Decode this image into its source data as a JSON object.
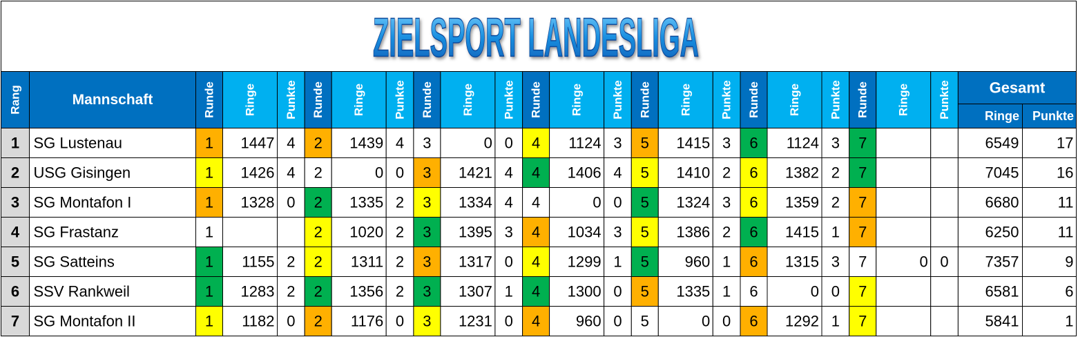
{
  "title": "ZIELSPORT LANDESLIGA",
  "colors": {
    "orange": "#ffb000",
    "yellow": "#ffff00",
    "green": "#00b050"
  },
  "header": {
    "rang": "Rang",
    "team": "Mannschaft",
    "rounds": [
      {
        "runde": "Runde",
        "ringe": "Ringe",
        "punkte": "Punkte"
      },
      {
        "runde": "Runde",
        "ringe": "Ringe",
        "punkte": "Punkte"
      },
      {
        "runde": "Runde",
        "ringe": "Ringe",
        "punkte": "Punkte"
      },
      {
        "runde": "Runde",
        "ringe": "Ringe",
        "punkte": "Punkte"
      },
      {
        "runde": "Runde",
        "ringe": "Ringe",
        "punkte": "Punkte"
      },
      {
        "runde": "Runde",
        "ringe": "Ringe",
        "punkte": "Punkte"
      },
      {
        "runde": "Runde",
        "ringe": "Ringe",
        "punkte": "Punkte"
      }
    ],
    "total": {
      "title": "Gesamt",
      "ringe": "Ringe",
      "punkte": "Punkte"
    }
  },
  "table": {
    "rows": [
      {
        "rang": 1,
        "team": "SG Lustenau",
        "rounds": [
          {
            "runde": 1,
            "ringe": 1447,
            "punkte": 4,
            "color": "orange"
          },
          {
            "runde": 2,
            "ringe": 1439,
            "punkte": 4,
            "color": "orange"
          },
          {
            "runde": 3,
            "ringe": 0,
            "punkte": 0,
            "color": null
          },
          {
            "runde": 4,
            "ringe": 1124,
            "punkte": 3,
            "color": "yellow"
          },
          {
            "runde": 5,
            "ringe": 1415,
            "punkte": 3,
            "color": "orange"
          },
          {
            "runde": 6,
            "ringe": 1124,
            "punkte": 3,
            "color": "green"
          },
          {
            "runde": 7,
            "ringe": null,
            "punkte": null,
            "color": "green"
          }
        ],
        "total": {
          "ringe": 6549,
          "punkte": 17
        }
      },
      {
        "rang": 2,
        "team": "USG Gisingen",
        "rounds": [
          {
            "runde": 1,
            "ringe": 1426,
            "punkte": 4,
            "color": "yellow"
          },
          {
            "runde": 2,
            "ringe": 0,
            "punkte": 0,
            "color": null
          },
          {
            "runde": 3,
            "ringe": 1421,
            "punkte": 4,
            "color": "orange"
          },
          {
            "runde": 4,
            "ringe": 1406,
            "punkte": 4,
            "color": "green"
          },
          {
            "runde": 5,
            "ringe": 1410,
            "punkte": 2,
            "color": "yellow"
          },
          {
            "runde": 6,
            "ringe": 1382,
            "punkte": 2,
            "color": "yellow"
          },
          {
            "runde": 7,
            "ringe": null,
            "punkte": null,
            "color": "green"
          }
        ],
        "total": {
          "ringe": 7045,
          "punkte": 16
        }
      },
      {
        "rang": 3,
        "team": "SG Montafon I",
        "rounds": [
          {
            "runde": 1,
            "ringe": 1328,
            "punkte": 0,
            "color": "orange"
          },
          {
            "runde": 2,
            "ringe": 1335,
            "punkte": 2,
            "color": "green"
          },
          {
            "runde": 3,
            "ringe": 1334,
            "punkte": 4,
            "color": "yellow"
          },
          {
            "runde": 4,
            "ringe": 0,
            "punkte": 0,
            "color": null
          },
          {
            "runde": 5,
            "ringe": 1324,
            "punkte": 3,
            "color": "green"
          },
          {
            "runde": 6,
            "ringe": 1359,
            "punkte": 2,
            "color": "yellow"
          },
          {
            "runde": 7,
            "ringe": null,
            "punkte": null,
            "color": "orange"
          }
        ],
        "total": {
          "ringe": 6680,
          "punkte": 11
        }
      },
      {
        "rang": 4,
        "team": "SG Frastanz",
        "rounds": [
          {
            "runde": 1,
            "ringe": null,
            "punkte": null,
            "color": null
          },
          {
            "runde": 2,
            "ringe": 1020,
            "punkte": 2,
            "color": "yellow"
          },
          {
            "runde": 3,
            "ringe": 1395,
            "punkte": 3,
            "color": "green"
          },
          {
            "runde": 4,
            "ringe": 1034,
            "punkte": 3,
            "color": "orange"
          },
          {
            "runde": 5,
            "ringe": 1386,
            "punkte": 2,
            "color": "yellow"
          },
          {
            "runde": 6,
            "ringe": 1415,
            "punkte": 1,
            "color": "green"
          },
          {
            "runde": 7,
            "ringe": null,
            "punkte": null,
            "color": "orange"
          }
        ],
        "total": {
          "ringe": 6250,
          "punkte": 11
        }
      },
      {
        "rang": 5,
        "team": "SG Satteins",
        "rounds": [
          {
            "runde": 1,
            "ringe": 1155,
            "punkte": 2,
            "color": "green"
          },
          {
            "runde": 2,
            "ringe": 1311,
            "punkte": 2,
            "color": "yellow"
          },
          {
            "runde": 3,
            "ringe": 1317,
            "punkte": 0,
            "color": "orange"
          },
          {
            "runde": 4,
            "ringe": 1299,
            "punkte": 1,
            "color": "yellow"
          },
          {
            "runde": 5,
            "ringe": 960,
            "punkte": 1,
            "color": "green"
          },
          {
            "runde": 6,
            "ringe": 1315,
            "punkte": 3,
            "color": "orange"
          },
          {
            "runde": 7,
            "ringe": 0,
            "punkte": 0,
            "color": null
          }
        ],
        "total": {
          "ringe": 7357,
          "punkte": 9
        }
      },
      {
        "rang": 6,
        "team": "SSV Rankweil",
        "rounds": [
          {
            "runde": 1,
            "ringe": 1283,
            "punkte": 2,
            "color": "green"
          },
          {
            "runde": 2,
            "ringe": 1356,
            "punkte": 2,
            "color": "green"
          },
          {
            "runde": 3,
            "ringe": 1307,
            "punkte": 1,
            "color": "green"
          },
          {
            "runde": 4,
            "ringe": 1300,
            "punkte": 0,
            "color": "green"
          },
          {
            "runde": 5,
            "ringe": 1335,
            "punkte": 1,
            "color": "orange"
          },
          {
            "runde": 6,
            "ringe": 0,
            "punkte": 0,
            "color": null
          },
          {
            "runde": 7,
            "ringe": null,
            "punkte": null,
            "color": "yellow"
          }
        ],
        "total": {
          "ringe": 6581,
          "punkte": 6
        }
      },
      {
        "rang": 7,
        "team": "SG Montafon II",
        "rounds": [
          {
            "runde": 1,
            "ringe": 1182,
            "punkte": 0,
            "color": "yellow"
          },
          {
            "runde": 2,
            "ringe": 1176,
            "punkte": 0,
            "color": "orange"
          },
          {
            "runde": 3,
            "ringe": 1231,
            "punkte": 0,
            "color": "yellow"
          },
          {
            "runde": 4,
            "ringe": 960,
            "punkte": 0,
            "color": "orange"
          },
          {
            "runde": 5,
            "ringe": 0,
            "punkte": 0,
            "color": null
          },
          {
            "runde": 6,
            "ringe": 1292,
            "punkte": 1,
            "color": "orange"
          },
          {
            "runde": 7,
            "ringe": null,
            "punkte": null,
            "color": "yellow"
          }
        ],
        "total": {
          "ringe": 5841,
          "punkte": 1
        }
      }
    ]
  }
}
